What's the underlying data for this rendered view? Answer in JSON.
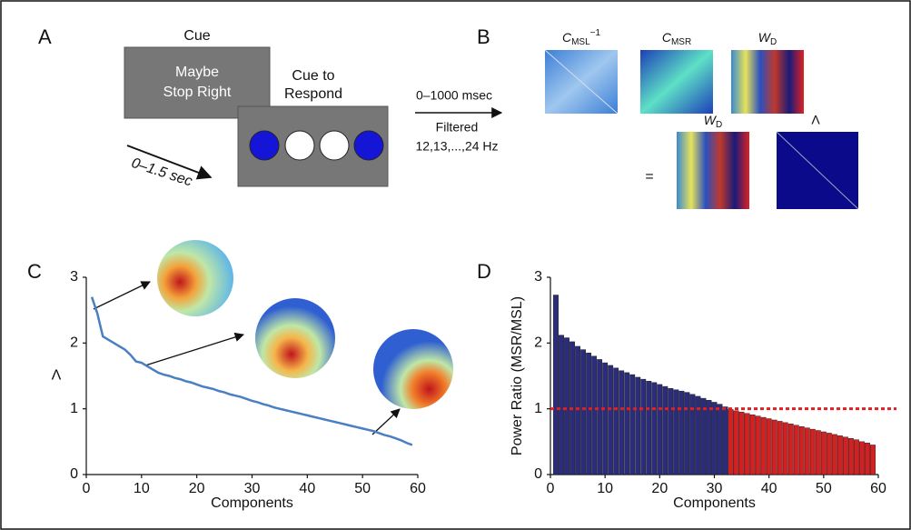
{
  "panel_labels": [
    "A",
    "B",
    "C",
    "D"
  ],
  "panel_a": {
    "cue_title": "Cue",
    "cue_text": [
      "Maybe",
      "Stop Right"
    ],
    "respond_title": [
      "Cue to",
      "Respond"
    ],
    "delay": "0–1.5 sec"
  },
  "panel_b": {
    "arrow_text": [
      "0–1000 msec",
      "Filtered",
      "12,13,...,24 Hz"
    ],
    "matrices": [
      {
        "symbol": "C",
        "subscript": "MSL",
        "superscript": "−1"
      },
      {
        "symbol": "C",
        "subscript": "MSR"
      },
      {
        "symbol": "W",
        "subscript": "D"
      },
      {
        "symbol": "W",
        "subscript": "D"
      },
      {
        "symbol": "Λ"
      }
    ],
    "equals": "="
  },
  "chart_data": [
    {
      "type": "line",
      "xlabel": "Components",
      "ylabel": "Λ",
      "color": "#4a7fc1",
      "x": [
        1,
        2,
        3,
        4,
        5,
        6,
        7,
        8,
        9,
        10,
        11,
        12,
        13,
        14,
        15,
        16,
        17,
        18,
        19,
        20,
        21,
        22,
        23,
        24,
        25,
        26,
        27,
        28,
        29,
        30,
        31,
        32,
        33,
        34,
        35,
        36,
        37,
        38,
        39,
        40,
        41,
        42,
        43,
        44,
        45,
        46,
        47,
        48,
        49,
        50,
        51,
        52,
        53,
        54,
        55,
        56,
        57,
        58,
        59
      ],
      "values": [
        2.7,
        2.45,
        2.1,
        2.05,
        2.0,
        1.95,
        1.9,
        1.82,
        1.72,
        1.7,
        1.65,
        1.6,
        1.55,
        1.52,
        1.5,
        1.47,
        1.45,
        1.42,
        1.4,
        1.37,
        1.34,
        1.32,
        1.3,
        1.27,
        1.25,
        1.22,
        1.2,
        1.18,
        1.15,
        1.12,
        1.1,
        1.07,
        1.05,
        1.02,
        1.0,
        0.98,
        0.96,
        0.94,
        0.92,
        0.9,
        0.88,
        0.86,
        0.84,
        0.82,
        0.8,
        0.78,
        0.76,
        0.74,
        0.72,
        0.7,
        0.68,
        0.66,
        0.63,
        0.6,
        0.58,
        0.55,
        0.52,
        0.48,
        0.45
      ],
      "xlim": [
        0,
        60
      ],
      "xticks": [
        0,
        10,
        20,
        30,
        40,
        50,
        60
      ],
      "ylim": [
        0,
        3
      ],
      "yticks": [
        0,
        1,
        2,
        3
      ]
    },
    {
      "type": "bar",
      "xlabel": "Components",
      "ylabel": "Power Ratio (MSR/MSL)",
      "color": "#2b2d7a",
      "below_color": "#d42020",
      "reference_line": {
        "value": 1,
        "color": "#e02020"
      },
      "x": [
        1,
        2,
        3,
        4,
        5,
        6,
        7,
        8,
        9,
        10,
        11,
        12,
        13,
        14,
        15,
        16,
        17,
        18,
        19,
        20,
        21,
        22,
        23,
        24,
        25,
        26,
        27,
        28,
        29,
        30,
        31,
        32,
        33,
        34,
        35,
        36,
        37,
        38,
        39,
        40,
        41,
        42,
        43,
        44,
        45,
        46,
        47,
        48,
        49,
        50,
        51,
        52,
        53,
        54,
        55,
        56,
        57,
        58,
        59
      ],
      "values": [
        2.73,
        2.12,
        2.08,
        2.02,
        1.95,
        1.9,
        1.85,
        1.8,
        1.75,
        1.7,
        1.66,
        1.62,
        1.58,
        1.55,
        1.52,
        1.48,
        1.45,
        1.42,
        1.4,
        1.37,
        1.34,
        1.31,
        1.29,
        1.27,
        1.25,
        1.22,
        1.19,
        1.16,
        1.13,
        1.1,
        1.07,
        1.03,
        0.99,
        0.97,
        0.95,
        0.93,
        0.91,
        0.89,
        0.87,
        0.85,
        0.83,
        0.81,
        0.79,
        0.77,
        0.75,
        0.73,
        0.71,
        0.69,
        0.67,
        0.65,
        0.63,
        0.61,
        0.59,
        0.57,
        0.55,
        0.53,
        0.5,
        0.48,
        0.45
      ],
      "xlim": [
        0,
        60
      ],
      "xticks": [
        0,
        10,
        20,
        30,
        40,
        50,
        60
      ],
      "ylim": [
        0,
        3
      ],
      "yticks": [
        0,
        1,
        2,
        3
      ]
    }
  ]
}
